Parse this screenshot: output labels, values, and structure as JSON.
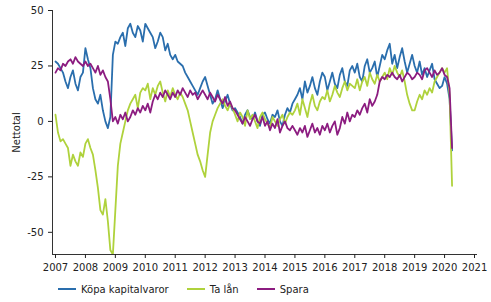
{
  "chart_data": {
    "type": "line",
    "y_label": "Nettotal",
    "x": [
      2007,
      2007.083,
      2007.167,
      2007.25,
      2007.333,
      2007.417,
      2007.5,
      2007.583,
      2007.667,
      2007.75,
      2007.833,
      2007.917,
      2008,
      2008.083,
      2008.167,
      2008.25,
      2008.333,
      2008.417,
      2008.5,
      2008.583,
      2008.667,
      2008.75,
      2008.833,
      2008.917,
      2009,
      2009.083,
      2009.167,
      2009.25,
      2009.333,
      2009.417,
      2009.5,
      2009.583,
      2009.667,
      2009.75,
      2009.833,
      2009.917,
      2010,
      2010.083,
      2010.167,
      2010.25,
      2010.333,
      2010.417,
      2010.5,
      2010.583,
      2010.667,
      2010.75,
      2010.833,
      2010.917,
      2011,
      2011.083,
      2011.167,
      2011.25,
      2011.333,
      2011.417,
      2011.5,
      2011.583,
      2011.667,
      2011.75,
      2011.833,
      2011.917,
      2012,
      2012.083,
      2012.167,
      2012.25,
      2012.333,
      2012.417,
      2012.5,
      2012.583,
      2012.667,
      2012.75,
      2012.833,
      2012.917,
      2013,
      2013.083,
      2013.167,
      2013.25,
      2013.333,
      2013.417,
      2013.5,
      2013.583,
      2013.667,
      2013.75,
      2013.833,
      2013.917,
      2014,
      2014.083,
      2014.167,
      2014.25,
      2014.333,
      2014.417,
      2014.5,
      2014.583,
      2014.667,
      2014.75,
      2014.833,
      2014.917,
      2015,
      2015.083,
      2015.167,
      2015.25,
      2015.333,
      2015.417,
      2015.5,
      2015.583,
      2015.667,
      2015.75,
      2015.833,
      2015.917,
      2016,
      2016.083,
      2016.167,
      2016.25,
      2016.333,
      2016.417,
      2016.5,
      2016.583,
      2016.667,
      2016.75,
      2016.833,
      2016.917,
      2017,
      2017.083,
      2017.167,
      2017.25,
      2017.333,
      2017.417,
      2017.5,
      2017.583,
      2017.667,
      2017.75,
      2017.833,
      2017.917,
      2018,
      2018.083,
      2018.167,
      2018.25,
      2018.333,
      2018.417,
      2018.5,
      2018.583,
      2018.667,
      2018.75,
      2018.833,
      2018.917,
      2019,
      2019.083,
      2019.167,
      2019.25,
      2019.333,
      2019.417,
      2019.5,
      2019.583,
      2019.667,
      2019.75,
      2019.833,
      2019.917,
      2020,
      2020.083,
      2020.167,
      2020.25
    ],
    "series": [
      {
        "name": "Köpa kapitalvaror",
        "color": "#2a6ead",
        "values": [
          27,
          26,
          24,
          22,
          18,
          15,
          20,
          23,
          17,
          14,
          20,
          22,
          33,
          28,
          24,
          15,
          10,
          8,
          12,
          5,
          0,
          -3,
          2,
          30,
          36,
          35,
          38,
          40,
          34,
          42,
          44,
          40,
          38,
          43,
          41,
          36,
          44,
          42,
          40,
          38,
          33,
          36,
          40,
          38,
          32,
          35,
          30,
          28,
          30,
          27,
          26,
          25,
          22,
          20,
          18,
          16,
          14,
          12,
          15,
          18,
          20,
          16,
          12,
          8,
          10,
          14,
          10,
          6,
          9,
          12,
          8,
          5,
          6,
          4,
          2,
          -1,
          3,
          5,
          2,
          1,
          4,
          0,
          -2,
          3,
          4,
          1,
          -1,
          3,
          2,
          5,
          0,
          -2,
          3,
          6,
          4,
          8,
          10,
          12,
          15,
          10,
          18,
          13,
          16,
          20,
          15,
          12,
          18,
          22,
          20,
          14,
          18,
          22,
          17,
          15,
          21,
          24,
          18,
          16,
          23,
          25,
          22,
          26,
          20,
          18,
          25,
          28,
          22,
          24,
          27,
          20,
          25,
          30,
          28,
          32,
          35,
          26,
          30,
          24,
          29,
          33,
          27,
          22,
          26,
          30,
          25,
          22,
          27,
          21,
          24,
          20,
          23,
          26,
          19,
          17,
          15,
          16,
          20,
          17,
          10,
          -13
        ]
      },
      {
        "name": "Ta lån",
        "color": "#afd23c",
        "values": [
          3,
          -5,
          -9,
          -8,
          -10,
          -12,
          -20,
          -15,
          -18,
          -20,
          -14,
          -16,
          -10,
          -8,
          -12,
          -15,
          -22,
          -30,
          -40,
          -42,
          -35,
          -45,
          -58,
          -60,
          -40,
          -20,
          -10,
          -5,
          0,
          5,
          8,
          10,
          12,
          6,
          13,
          15,
          14,
          17,
          10,
          15,
          12,
          16,
          18,
          13,
          9,
          14,
          11,
          15,
          12,
          10,
          13,
          11,
          8,
          5,
          0,
          -5,
          -10,
          -15,
          -18,
          -22,
          -25,
          -15,
          -5,
          0,
          3,
          6,
          8,
          10,
          7,
          5,
          8,
          6,
          3,
          0,
          4,
          2,
          -2,
          5,
          1,
          3,
          0,
          -3,
          2,
          4,
          1,
          -1,
          -3,
          2,
          0,
          -2,
          1,
          3,
          -1,
          2,
          4,
          3,
          5,
          8,
          3,
          10,
          6,
          2,
          8,
          12,
          7,
          5,
          9,
          11,
          10,
          14,
          9,
          12,
          16,
          13,
          11,
          15,
          18,
          14,
          17,
          16,
          15,
          19,
          14,
          18,
          20,
          16,
          22,
          19,
          17,
          21,
          18,
          20,
          22,
          19,
          24,
          21,
          25,
          22,
          20,
          23,
          18,
          12,
          8,
          5,
          5,
          9,
          12,
          10,
          14,
          12,
          15,
          13,
          18,
          20,
          22,
          24,
          22,
          24,
          12,
          -29
        ]
      },
      {
        "name": "Spara",
        "color": "#8c1c80",
        "values": [
          22,
          24,
          23,
          26,
          25,
          27,
          28,
          26,
          29,
          27,
          26,
          25,
          27,
          25,
          26,
          24,
          22,
          25,
          21,
          23,
          20,
          18,
          10,
          0,
          2,
          -1,
          3,
          1,
          4,
          0,
          2,
          5,
          3,
          6,
          4,
          7,
          5,
          8,
          4,
          9,
          12,
          10,
          13,
          11,
          14,
          12,
          10,
          13,
          11,
          14,
          12,
          15,
          13,
          11,
          14,
          12,
          13,
          10,
          12,
          14,
          12,
          10,
          13,
          11,
          9,
          12,
          10,
          8,
          11,
          7,
          9,
          6,
          5,
          3,
          1,
          -1,
          2,
          0,
          -2,
          1,
          3,
          0,
          -1,
          2,
          -2,
          0,
          -4,
          -1,
          -3,
          1,
          -5,
          -2,
          0,
          -3,
          -4,
          -2,
          -4,
          -6,
          -3,
          -5,
          -2,
          -7,
          -4,
          -1,
          -5,
          -3,
          -6,
          -2,
          -4,
          -1,
          -5,
          -2,
          0,
          -6,
          -3,
          2,
          -1,
          4,
          0,
          3,
          2,
          5,
          3,
          6,
          8,
          4,
          10,
          7,
          9,
          12,
          18,
          20,
          19,
          21,
          20,
          22,
          20,
          19,
          21,
          18,
          20,
          22,
          21,
          19,
          20,
          22,
          21,
          19,
          23,
          24,
          22,
          20,
          23,
          21,
          22,
          24,
          21,
          20,
          15,
          -12
        ]
      }
    ],
    "xlim": [
      2006.9,
      2021.1
    ],
    "xticks": [
      2007,
      2008,
      2009,
      2010,
      2011,
      2012,
      2013,
      2014,
      2015,
      2016,
      2017,
      2018,
      2019,
      2020,
      2021
    ],
    "ylim": [
      -60,
      50
    ],
    "yticks": [
      -50,
      -25,
      0,
      25,
      50
    ],
    "grid": false,
    "legend": "bottom"
  }
}
